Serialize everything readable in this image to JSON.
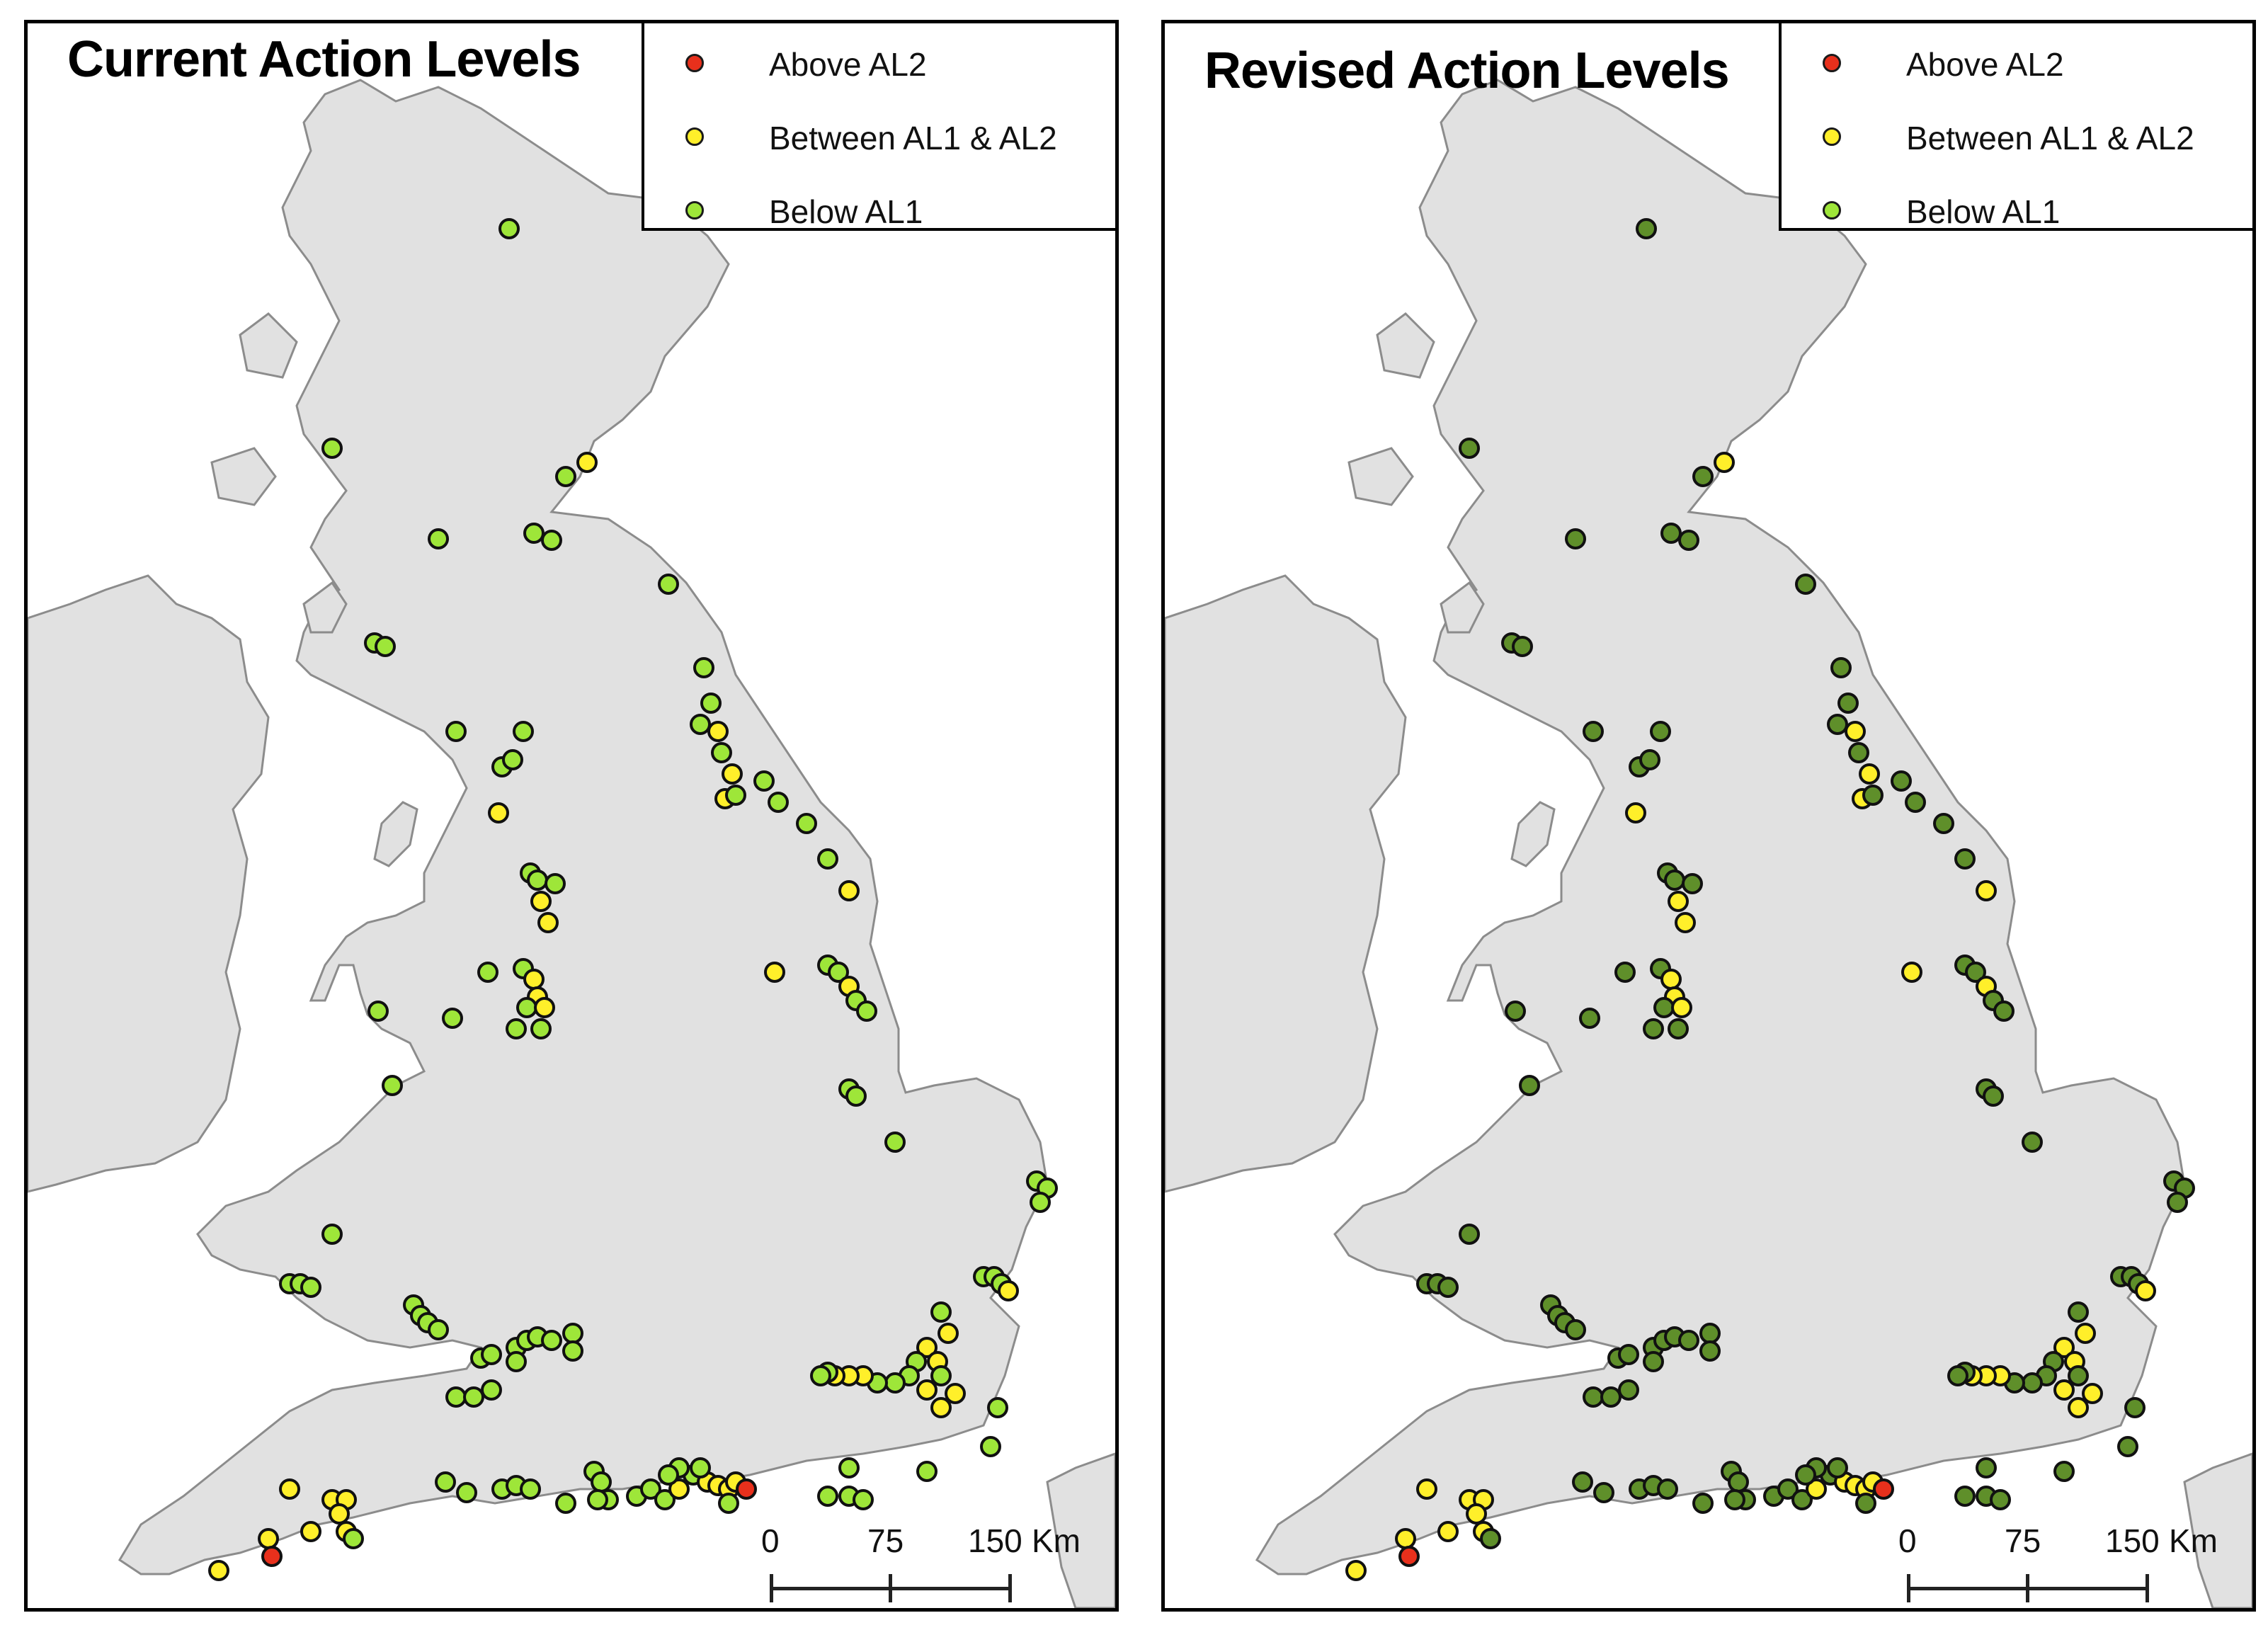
{
  "panels": [
    {
      "title": "Current Action Levels",
      "legend": [
        {
          "label": "Above AL2",
          "color": "#e8301c"
        },
        {
          "label": "Between AL1 & AL2",
          "color": "#ffef2a"
        },
        {
          "label": "Below AL1",
          "color": "#9ee639"
        }
      ],
      "scale": {
        "labels": [
          "0",
          "75",
          "150"
        ],
        "unit": "Km"
      }
    },
    {
      "title": "Revised Action Levels",
      "legend": [
        {
          "label": "Above AL2",
          "color": "#e8301c"
        },
        {
          "label": "Between AL1 & AL2",
          "color": "#ffef2a"
        },
        {
          "label": "Below AL1",
          "color": "#9ee639"
        }
      ],
      "scale": {
        "labels": [
          "0",
          "75",
          "150"
        ],
        "unit": "Km"
      }
    }
  ],
  "colors": {
    "land": "#e1e1e1",
    "coast": "#8c8c8c",
    "sea": "#ffffff",
    "above_al2": "#e8301c",
    "between": "#ffef2a",
    "below_light": "#9ee639",
    "below_dark": "#5f8f2a"
  }
}
